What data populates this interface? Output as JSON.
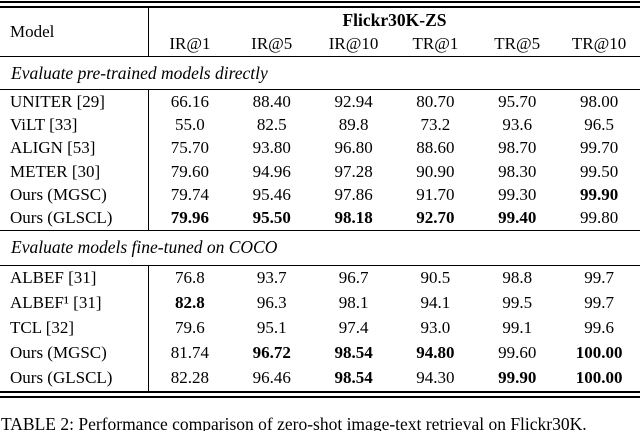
{
  "header": {
    "model_label": "Model",
    "group_label": "Flickr30K-ZS",
    "columns": [
      "IR@1",
      "IR@5",
      "IR@10",
      "TR@1",
      "TR@5",
      "TR@10"
    ]
  },
  "sections": [
    {
      "title": "Evaluate pre-trained models directly",
      "rows": [
        {
          "model": "UNITER [29]",
          "values": [
            "66.16",
            "88.40",
            "92.94",
            "80.70",
            "95.70",
            "98.00"
          ],
          "bold": [
            0,
            0,
            0,
            0,
            0,
            0
          ]
        },
        {
          "model": "ViLT [33]",
          "values": [
            "55.0",
            "82.5",
            "89.8",
            "73.2",
            "93.6",
            "96.5"
          ],
          "bold": [
            0,
            0,
            0,
            0,
            0,
            0
          ]
        },
        {
          "model": "ALIGN [53]",
          "values": [
            "75.70",
            "93.80",
            "96.80",
            "88.60",
            "98.70",
            "99.70"
          ],
          "bold": [
            0,
            0,
            0,
            0,
            0,
            0
          ]
        },
        {
          "model": "METER [30]",
          "values": [
            "79.60",
            "94.96",
            "97.28",
            "90.90",
            "98.30",
            "99.50"
          ],
          "bold": [
            0,
            0,
            0,
            0,
            0,
            0
          ]
        },
        {
          "model": "Ours (MGSC)",
          "values": [
            "79.74",
            "95.46",
            "97.86",
            "91.70",
            "99.30",
            "99.90"
          ],
          "bold": [
            0,
            0,
            0,
            0,
            0,
            1
          ]
        },
        {
          "model": "Ours (GLSCL)",
          "values": [
            "79.96",
            "95.50",
            "98.18",
            "92.70",
            "99.40",
            "99.80"
          ],
          "bold": [
            1,
            1,
            1,
            1,
            1,
            0
          ]
        }
      ]
    },
    {
      "title": "Evaluate models fine-tuned on COCO",
      "rows": [
        {
          "model": "ALBEF [31]",
          "values": [
            "76.8",
            "93.7",
            "96.7",
            "90.5",
            "98.8",
            "99.7"
          ],
          "bold": [
            0,
            0,
            0,
            0,
            0,
            0
          ]
        },
        {
          "model": "ALBEF¹ [31]",
          "values": [
            "82.8",
            "96.3",
            "98.1",
            "94.1",
            "99.5",
            "99.7"
          ],
          "bold": [
            1,
            0,
            0,
            0,
            0,
            0
          ]
        },
        {
          "model": "TCL [32]",
          "values": [
            "79.6",
            "95.1",
            "97.4",
            "93.0",
            "99.1",
            "99.6"
          ],
          "bold": [
            0,
            0,
            0,
            0,
            0,
            0
          ]
        },
        {
          "model": "Ours (MGSC)",
          "values": [
            "81.74",
            "96.72",
            "98.54",
            "94.80",
            "99.60",
            "100.00"
          ],
          "bold": [
            0,
            1,
            1,
            1,
            0,
            1
          ]
        },
        {
          "model": "Ours (GLSCL)",
          "values": [
            "82.28",
            "96.46",
            "98.54",
            "94.30",
            "99.90",
            "100.00"
          ],
          "bold": [
            0,
            0,
            1,
            0,
            1,
            1
          ]
        }
      ]
    }
  ],
  "caption": "TABLE 2: Performance comparison of zero-shot image-text retrieval on Flickr30K."
}
